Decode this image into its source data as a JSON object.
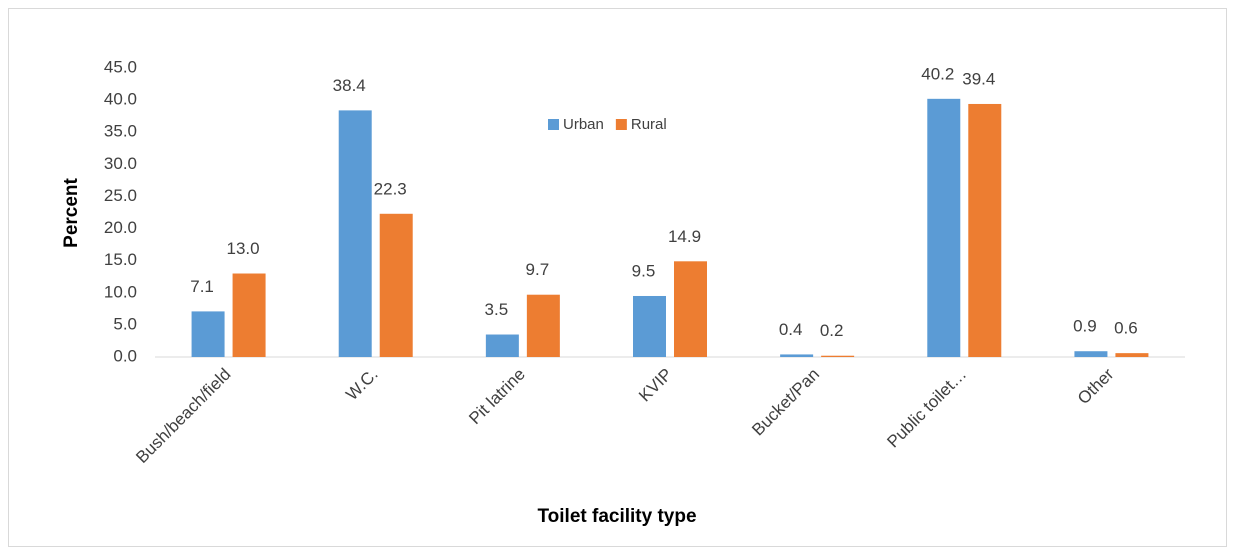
{
  "chart_data": {
    "type": "bar",
    "x_label": "Toilet facility type",
    "y_label": "Percent",
    "categories": [
      "Bush/beach/field",
      "W.C.",
      "Pit latrine",
      "KVIP",
      "Bucket/Pan",
      "Public toilet…",
      "Other"
    ],
    "series": [
      {
        "name": "Urban",
        "color": "#5b9bd5",
        "values": [
          7.1,
          38.4,
          3.5,
          9.5,
          0.4,
          40.2,
          0.9
        ],
        "value_labels": [
          "7.1",
          "38.4",
          "3.5",
          "9.5",
          "0.4",
          "40.2",
          "0.9"
        ]
      },
      {
        "name": "Rural",
        "color": "#ed7d31",
        "values": [
          13,
          22.3,
          9.7,
          14.9,
          0.2,
          39.4,
          0.6
        ],
        "value_labels": [
          "13.0",
          "22.3",
          "9.7",
          "14.9",
          "0.2",
          "39.4",
          "0.6"
        ]
      }
    ],
    "ylim": [
      0,
      45
    ],
    "yticks": [
      {
        "value": 0,
        "label": "0.0"
      },
      {
        "value": 5,
        "label": "5.0"
      },
      {
        "value": 10,
        "label": "10.0"
      },
      {
        "value": 15,
        "label": "15.0"
      },
      {
        "value": 20,
        "label": "20.0"
      },
      {
        "value": 25,
        "label": "25.0"
      },
      {
        "value": 30,
        "label": "30.0"
      },
      {
        "value": 35,
        "label": "35.0"
      },
      {
        "value": 40,
        "label": "40.0"
      },
      {
        "value": 45,
        "label": "45.0"
      }
    ],
    "grid": false,
    "legend": "top"
  }
}
